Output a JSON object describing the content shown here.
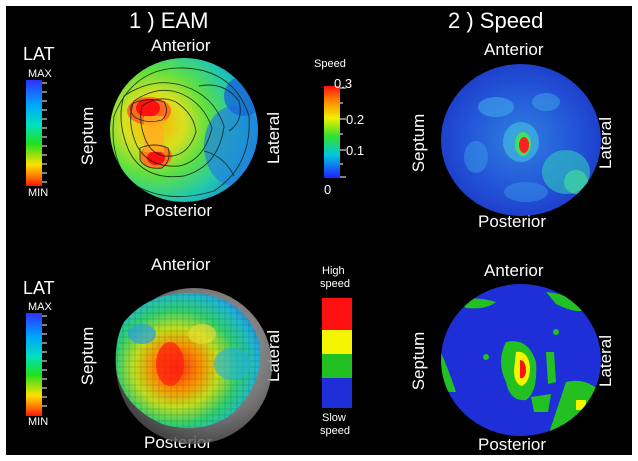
{
  "titles": {
    "eam": "1 ) EAM",
    "speed": "2 ) Speed"
  },
  "orientation": {
    "anterior": "Anterior",
    "posterior": "Posterior",
    "septum": "Septum",
    "lateral": "Lateral"
  },
  "lat_legend": {
    "label": "LAT",
    "max": "MAX",
    "min": "MIN"
  },
  "speed_legend": {
    "title": "Speed",
    "ticks": [
      "0.3",
      "0.2",
      "0.1",
      "0"
    ]
  },
  "speed_category_legend": {
    "high_line1": "High",
    "high_line2": "speed",
    "slow_line1": "Slow",
    "slow_line2": "speed"
  },
  "colors": {
    "background": "#000000",
    "text": "#ffffff",
    "high": "#ff1010",
    "mid": "#f5f500",
    "low_mid": "#22c020",
    "slow": "#1f2fd8",
    "map_blue": "#1f4fd0"
  }
}
